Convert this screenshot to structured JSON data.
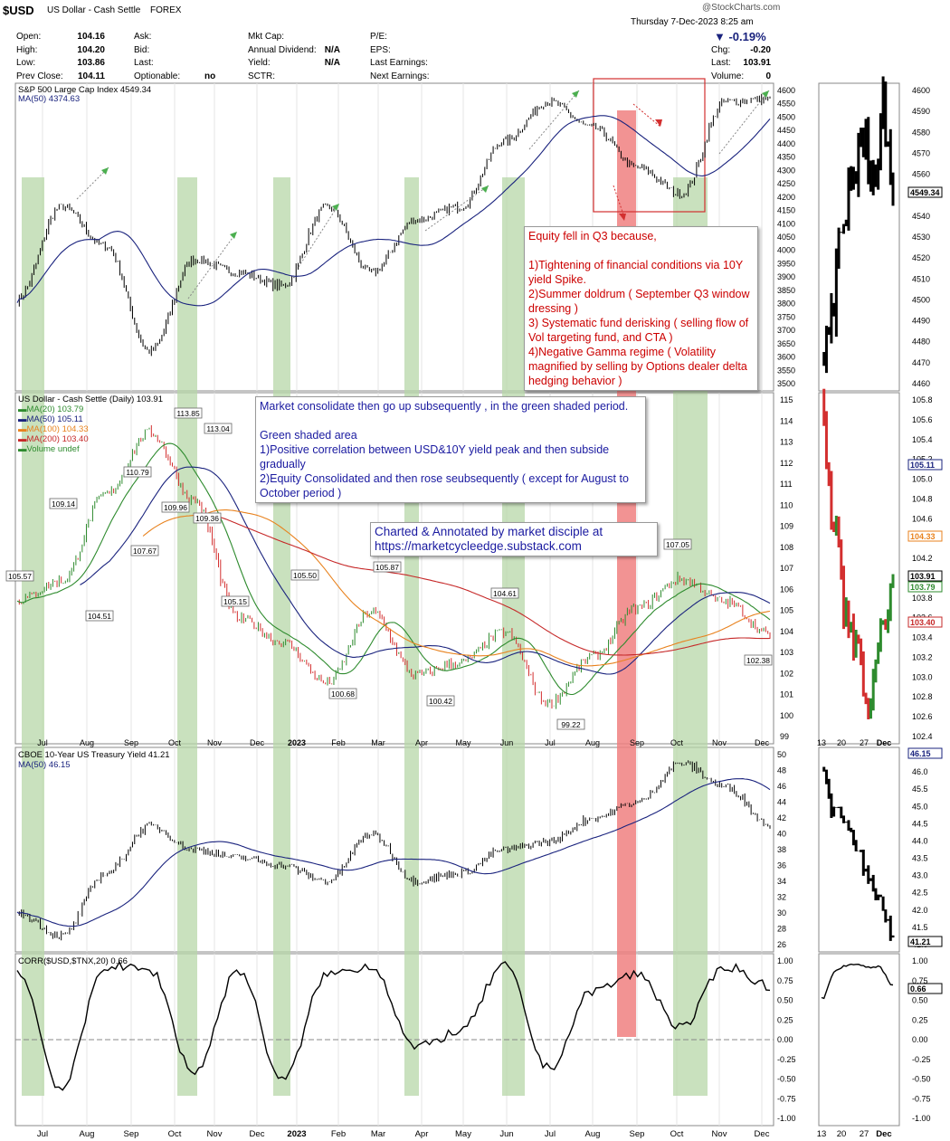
{
  "header": {
    "symbol": "$USD",
    "name": "US Dollar - Cash Settle",
    "exchange": "FOREX",
    "brand": "@StockCharts.com",
    "datetime": "Thursday  7-Dec-2023  8:25 am",
    "change_pct": "▼ -0.19%",
    "rows": [
      {
        "l1": "Open:",
        "v1": "104.16",
        "l2": "Ask:",
        "v2": "",
        "l3": "Mkt Cap:",
        "v3": "",
        "l4": "P/E:",
        "v4": "",
        "l5": "",
        "v5": ""
      },
      {
        "l1": "High:",
        "v1": "104.20",
        "l2": "Bid:",
        "v2": "",
        "l3": "Annual Dividend:",
        "v3": "N/A",
        "l4": "EPS:",
        "v4": "",
        "l5": "Chg:",
        "v5": "-0.20"
      },
      {
        "l1": "Low:",
        "v1": "103.86",
        "l2": "Last:",
        "v2": "",
        "l3": "Yield:",
        "v3": "N/A",
        "l4": "Last Earnings:",
        "v4": "",
        "l5": "Last:",
        "v5": "103.91"
      },
      {
        "l1": "Prev Close:",
        "v1": "104.11",
        "l2": "Optionable:",
        "v2": "no",
        "l3": "SCTR:",
        "v3": "",
        "l4": "Next Earnings:",
        "v4": "",
        "l5": "Volume:",
        "v5": "0"
      }
    ]
  },
  "annotations": {
    "equity_note": "Equity fell in Q3 because,\n\n1)Tightening of financial conditions via 10Y yield Spike.\n2)Summer doldrum ( September Q3 window dressing )\n3) Systematic fund derisking ( selling flow of Vol targeting fund, and CTA )\n4)Negative Gamma regime ( Volatility magnified by selling by Options dealer delta hedging behavior )",
    "market_note": "Market consolidate then go up subsequently , in the green shaded period.\n\nGreen shaded area\n1)Positive correlation between USD&10Y yield peak and then subside gradually\n2)Equity Consolidated and then rose seubsequently ( except for August to October period )",
    "credit_note": "Charted & Annotated by market disciple at\nhttps://marketcycleedge.substack.com"
  },
  "panels": {
    "spx": {
      "title": "S&P 500 Large Cap Index 4549.34",
      "ma": "MA(50) 4374.63",
      "last": "4549.34"
    },
    "usd": {
      "title": "US Dollar - Cash Settle (Daily) 103.91",
      "legend": [
        {
          "text": "MA(20) 103.79",
          "color": "#2e8b2e"
        },
        {
          "text": "MA(50) 105.11",
          "color": "#1a237e"
        },
        {
          "text": "MA(100) 104.33",
          "color": "#e8821e"
        },
        {
          "text": "MA(200) 103.40",
          "color": "#c62828"
        },
        {
          "text": "Volume undef",
          "color": "#2e8b2e"
        }
      ],
      "last": "103.91"
    },
    "tnx": {
      "title": "CBOE 10-Year US Treasury Yield 41.21",
      "ma": "MA(50) 46.15",
      "last": "41.21"
    },
    "corr": {
      "title": "CORR($USD,$TNX,20) 0.66",
      "last": "0.66"
    }
  },
  "colors": {
    "up": "#2e8b2e",
    "down": "#d32f2f",
    "ma50": "#1a237e",
    "green_shade": "#b7d7a8",
    "red_shade": "#f08080"
  },
  "chart_data": [
    {
      "type": "line",
      "title": "S&P 500 Large Cap Index 4549.34",
      "x": [
        "Jul",
        "Aug",
        "Sep",
        "Oct",
        "Nov",
        "Dec",
        "2023",
        "Feb",
        "Mar",
        "Apr",
        "May",
        "Jun",
        "Jul",
        "Aug",
        "Sep",
        "Oct",
        "Nov",
        "Dec"
      ],
      "series": [
        {
          "name": "S&P 500 Large Cap Index",
          "values": [
            3800,
            4150,
            4000,
            3600,
            3950,
            3900,
            3850,
            4150,
            3900,
            4100,
            4150,
            4400,
            4550,
            4450,
            4300,
            4200,
            4550,
            4560
          ]
        }
      ],
      "ylim": [
        3450,
        4620
      ]
    },
    {
      "type": "line",
      "title": "US Dollar - Cash Settle (Daily) 103.91",
      "x": [
        "Jul",
        "Aug",
        "Sep",
        "Oct",
        "Nov",
        "Dec",
        "2023",
        "Feb",
        "Mar",
        "Apr",
        "May",
        "Jun",
        "Jul",
        "Aug",
        "Sep",
        "Oct",
        "Nov",
        "Dec"
      ],
      "series": [
        {
          "name": "US Dollar - Cash Settle",
          "values": [
            105.57,
            106.5,
            110.79,
            113.85,
            110.5,
            104.7,
            103.5,
            101.5,
            105.0,
            101.9,
            102.5,
            104.0,
            100.5,
            102.8,
            105.2,
            106.6,
            105.5,
            103.9
          ]
        }
      ],
      "labels": [
        "105.57",
        "109.14",
        "104.51",
        "107.67",
        "110.79",
        "113.85",
        "109.96",
        "109.36",
        "113.04",
        "105.15",
        "105.50",
        "100.68",
        "105.87",
        "100.42",
        "104.61",
        "99.22",
        "107.05",
        "102.38"
      ],
      "ylim": [
        98.5,
        115.8
      ]
    },
    {
      "type": "line",
      "title": "CBOE 10-Year US Treasury Yield 41.21",
      "x": [
        "Jul",
        "Aug",
        "Sep",
        "Oct",
        "Nov",
        "Dec",
        "2023",
        "Feb",
        "Mar",
        "Apr",
        "May",
        "Jun",
        "Jul",
        "Aug",
        "Sep",
        "Oct",
        "Nov",
        "Dec"
      ],
      "series": [
        {
          "name": "CBOE 10-Year US Treasury Yield",
          "values": [
            30,
            27,
            35,
            41,
            38,
            37,
            36,
            34,
            40,
            34,
            35,
            38,
            39,
            42,
            44,
            49,
            46,
            41.2
          ]
        }
      ],
      "ylim": [
        25,
        51
      ]
    },
    {
      "type": "line",
      "title": "CORR($USD,$TNX,20) 0.66",
      "x": [
        "Jul",
        "Aug",
        "Sep",
        "Oct",
        "Nov",
        "Dec",
        "2023",
        "Feb",
        "Mar",
        "Apr",
        "May",
        "Jun",
        "Jul",
        "Aug",
        "Sep",
        "Oct",
        "Nov",
        "Dec"
      ],
      "series": [
        {
          "name": "CORR($USD,$TNX,20)",
          "values": [
            0.85,
            -0.6,
            0.9,
            0.85,
            -0.4,
            0.85,
            -0.5,
            0.8,
            0.9,
            -0.1,
            0.1,
            0.9,
            -0.35,
            0.6,
            0.8,
            0.15,
            0.9,
            0.66
          ]
        }
      ],
      "ylim": [
        -1,
        1
      ]
    }
  ],
  "axes": {
    "months": [
      "Jul",
      "Aug",
      "Sep",
      "Oct",
      "Nov",
      "Dec",
      "2023",
      "Feb",
      "Mar",
      "Apr",
      "May",
      "Jun",
      "Jul",
      "Aug",
      "Sep",
      "Oct",
      "Nov",
      "Dec"
    ],
    "inset_days": [
      "13",
      "20",
      "27",
      "Dec"
    ],
    "spx_ticks": [
      "4600",
      "4550",
      "4500",
      "4450",
      "4400",
      "4350",
      "4300",
      "4250",
      "4200",
      "4150",
      "4100",
      "4050",
      "4000",
      "3950",
      "3900",
      "3850",
      "3800",
      "3750",
      "3700",
      "3650",
      "3600",
      "3550",
      "3500"
    ],
    "spx_inset_ticks": [
      "4600",
      "4590",
      "4580",
      "4570",
      "4560",
      "4550",
      "4540",
      "4530",
      "4520",
      "4510",
      "4500",
      "4490",
      "4480",
      "4470",
      "4460"
    ],
    "usd_ticks": [
      "115",
      "114",
      "113",
      "112",
      "111",
      "110",
      "109",
      "108",
      "107",
      "106",
      "105",
      "104",
      "103",
      "102",
      "101",
      "100",
      "99"
    ],
    "usd_inset_ticks": [
      "105.8",
      "105.6",
      "105.4",
      "105.2",
      "105.0",
      "104.8",
      "104.6",
      "104.4",
      "104.2",
      "104.0",
      "103.8",
      "103.6",
      "103.4",
      "103.2",
      "103.0",
      "102.8",
      "102.6",
      "102.4"
    ],
    "usd_inset_badges": [
      {
        "text": "105.11",
        "color": "#1a237e"
      },
      {
        "text": "104.33",
        "color": "#e8821e"
      },
      {
        "text": "103.91",
        "color": "#000"
      },
      {
        "text": "103.79",
        "color": "#2e8b2e"
      },
      {
        "text": "103.40",
        "color": "#c62828"
      }
    ],
    "tnx_ticks": [
      "50",
      "48",
      "46",
      "44",
      "42",
      "40",
      "38",
      "36",
      "34",
      "32",
      "30",
      "28",
      "26"
    ],
    "tnx_inset_ticks": [
      "46.5",
      "46.0",
      "45.5",
      "45.0",
      "44.5",
      "44.0",
      "43.5",
      "43.0",
      "42.5",
      "42.0",
      "41.5",
      "41.0"
    ],
    "corr_ticks": [
      "1.00",
      "0.75",
      "0.50",
      "0.25",
      "0.00",
      "-0.25",
      "-0.50",
      "-0.75",
      "-1.00"
    ]
  }
}
